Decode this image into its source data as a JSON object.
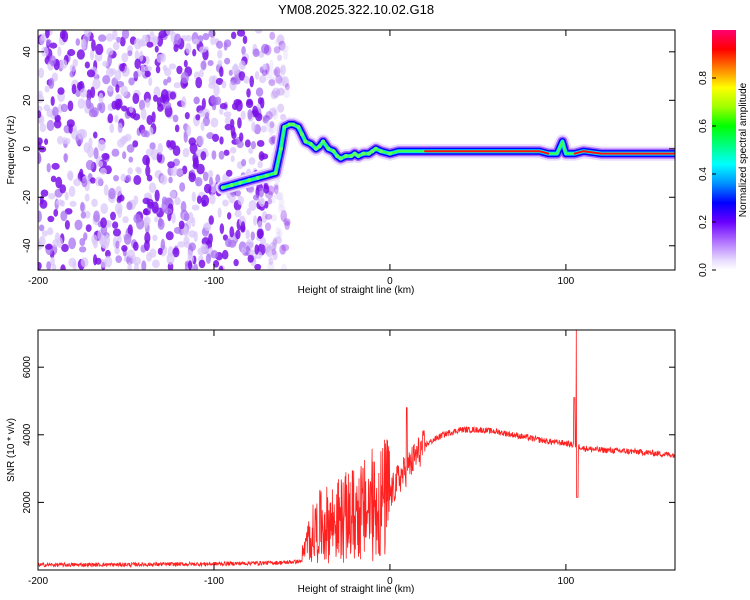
{
  "title": "YM08.2025.322.10.02.G18",
  "chart_data": [
    {
      "type": "heatmap",
      "xlabel": "Height of straight line (km)",
      "ylabel": "Frequency (Hz)",
      "xlim": [
        -200,
        162
      ],
      "ylim": [
        -50,
        49
      ],
      "xticks": [
        -200,
        -100,
        0,
        100
      ],
      "yticks": [
        -40,
        -20,
        0,
        20,
        40
      ],
      "noise_region_x": [
        -200,
        -60
      ],
      "track": {
        "x": [
          -95,
          -90,
          -85,
          -80,
          -75,
          -70,
          -65,
          -62,
          -60,
          -57,
          -55,
          -52,
          -50,
          -48,
          -45,
          -42,
          -40,
          -38,
          -35,
          -32,
          -30,
          -28,
          -25,
          -22,
          -20,
          -18,
          -15,
          -12,
          -10,
          -8,
          -5,
          0,
          5,
          10,
          20,
          40,
          60,
          75,
          85,
          90,
          95,
          98,
          100,
          105,
          110,
          120,
          140,
          162
        ],
        "y": [
          -16,
          -15,
          -14,
          -13,
          -12,
          -11,
          -10,
          0,
          9,
          10,
          10,
          9,
          6,
          3,
          2,
          0,
          1,
          3,
          0,
          -1,
          -3,
          -4,
          -3,
          -3,
          -2,
          -3,
          -2,
          -2,
          -1,
          0,
          -1,
          -2,
          -1,
          -1,
          -1,
          -1,
          -1,
          -1,
          -1,
          -2,
          -2,
          3,
          -2,
          -2,
          -1,
          -2,
          -2,
          -2
        ]
      },
      "colorbar": {
        "label": "Normalized spectral amplitude",
        "ticks": [
          0.0,
          0.2,
          0.4,
          0.6,
          0.8
        ],
        "tick_labels": [
          "0.0",
          "0.2",
          "0.4",
          "0.6",
          "0.8"
        ],
        "range": [
          0,
          1
        ],
        "colors": [
          "#ffffff",
          "#c8a8ff",
          "#7a00ff",
          "#2a00ff",
          "#0000ff",
          "#00a0ff",
          "#00ffff",
          "#00ff80",
          "#00ff00",
          "#a0ff00",
          "#ffff00",
          "#ff8000",
          "#ff0000",
          "#ff0060"
        ]
      }
    },
    {
      "type": "line",
      "xlabel": "Height of straight line (km)",
      "ylabel": "SNR (10 * v/v)",
      "xlim": [
        -200,
        162
      ],
      "ylim": [
        0,
        7100
      ],
      "xticks": [
        -200,
        -100,
        0,
        100
      ],
      "yticks": [
        2000,
        4000,
        6000
      ],
      "color": "#ff2020",
      "series": [
        {
          "name": "SNR",
          "x": [
            -200,
            -150,
            -100,
            -80,
            -60,
            -50,
            -45,
            -40,
            -35,
            -30,
            -25,
            -20,
            -15,
            -10,
            -5,
            0,
            5,
            10,
            15,
            20,
            30,
            40,
            50,
            60,
            70,
            80,
            90,
            100,
            104,
            106,
            108,
            110,
            120,
            140,
            162
          ],
          "y": [
            150,
            160,
            180,
            200,
            220,
            260,
            900,
            1200,
            1300,
            1400,
            1500,
            1600,
            1700,
            1900,
            2000,
            2200,
            2700,
            3000,
            3400,
            3700,
            4000,
            4150,
            4150,
            4100,
            4000,
            3900,
            3800,
            3750,
            3700,
            3650,
            3650,
            3600,
            3550,
            3500,
            3400
          ]
        }
      ]
    }
  ]
}
